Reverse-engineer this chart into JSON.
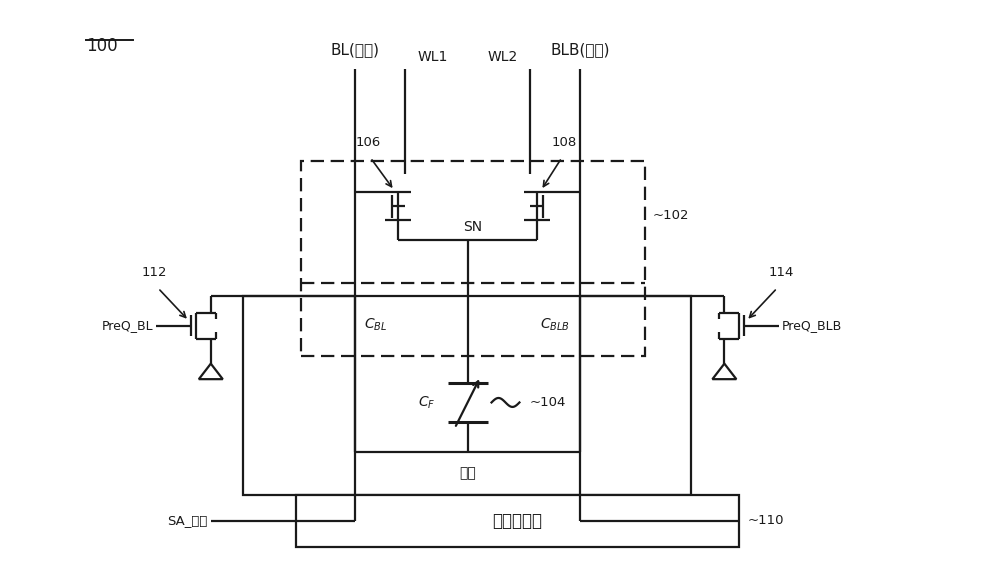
{
  "line_color": "#1a1a1a",
  "dash_color": "#2a2a2a",
  "labels": {
    "BL": "BL(数据)",
    "BLB": "BLB(参考)",
    "WL1": "WL1",
    "WL2": "WL2",
    "SN": "SN",
    "CF": "$C_F$",
    "CBL": "$C_{BL}$",
    "CBLB": "$C_{BLB}$",
    "PL": "板线",
    "SA": "感测放大器",
    "SA_enable": "SA_使能",
    "PreQ_BL": "PreQ_BL",
    "PreQ_BLB": "PreQ_BLB",
    "ref100": "100",
    "ref102": "102",
    "ref104": "104",
    "ref106": "106",
    "ref108": "108",
    "ref110": "110",
    "ref112": "112",
    "ref114": "114"
  }
}
